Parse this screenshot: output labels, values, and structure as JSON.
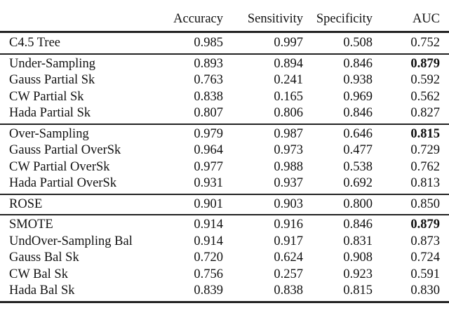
{
  "table": {
    "columns": [
      "Accuracy",
      "Sensitivity",
      "Specificity",
      "AUC"
    ],
    "groups": [
      {
        "rows": [
          {
            "method": "C4.5 Tree",
            "values": [
              "0.985",
              "0.997",
              "0.508",
              "0.752"
            ],
            "bold": [
              false,
              false,
              false,
              false
            ]
          }
        ]
      },
      {
        "rows": [
          {
            "method": "Under-Sampling",
            "values": [
              "0.893",
              "0.894",
              "0.846",
              "0.879"
            ],
            "bold": [
              false,
              false,
              false,
              true
            ]
          },
          {
            "method": "Gauss Partial Sk",
            "values": [
              "0.763",
              "0.241",
              "0.938",
              "0.592"
            ],
            "bold": [
              false,
              false,
              false,
              false
            ]
          },
          {
            "method": "CW Partial Sk",
            "values": [
              "0.838",
              "0.165",
              "0.969",
              "0.562"
            ],
            "bold": [
              false,
              false,
              false,
              false
            ]
          },
          {
            "method": "Hada Partial Sk",
            "values": [
              "0.807",
              "0.806",
              "0.846",
              "0.827"
            ],
            "bold": [
              false,
              false,
              false,
              false
            ]
          }
        ]
      },
      {
        "rows": [
          {
            "method": "Over-Sampling",
            "values": [
              "0.979",
              "0.987",
              "0.646",
              "0.815"
            ],
            "bold": [
              false,
              false,
              false,
              true
            ]
          },
          {
            "method": "Gauss Partial OverSk",
            "values": [
              "0.964",
              "0.973",
              "0.477",
              "0.729"
            ],
            "bold": [
              false,
              false,
              false,
              false
            ]
          },
          {
            "method": "CW Partial OverSk",
            "values": [
              "0.977",
              "0.988",
              "0.538",
              "0.762"
            ],
            "bold": [
              false,
              false,
              false,
              false
            ]
          },
          {
            "method": "Hada Partial OverSk",
            "values": [
              "0.931",
              "0.937",
              "0.692",
              "0.813"
            ],
            "bold": [
              false,
              false,
              false,
              false
            ]
          }
        ]
      },
      {
        "rows": [
          {
            "method": "ROSE",
            "values": [
              "0.901",
              "0.903",
              "0.800",
              "0.850"
            ],
            "bold": [
              false,
              false,
              false,
              false
            ]
          }
        ]
      },
      {
        "rows": [
          {
            "method": "SMOTE",
            "values": [
              "0.914",
              "0.916",
              "0.846",
              "0.879"
            ],
            "bold": [
              false,
              false,
              false,
              true
            ]
          },
          {
            "method": "UndOver-Sampling Bal",
            "values": [
              "0.914",
              "0.917",
              "0.831",
              "0.873"
            ],
            "bold": [
              false,
              false,
              false,
              false
            ]
          },
          {
            "method": "Gauss Bal Sk",
            "values": [
              "0.720",
              "0.624",
              "0.908",
              "0.724"
            ],
            "bold": [
              false,
              false,
              false,
              false
            ]
          },
          {
            "method": "CW Bal Sk",
            "values": [
              "0.756",
              "0.257",
              "0.923",
              "0.591"
            ],
            "bold": [
              false,
              false,
              false,
              false
            ]
          },
          {
            "method": "Hada Bal Sk",
            "values": [
              "0.839",
              "0.838",
              "0.815",
              "0.830"
            ],
            "bold": [
              false,
              false,
              false,
              false
            ]
          }
        ]
      }
    ]
  }
}
